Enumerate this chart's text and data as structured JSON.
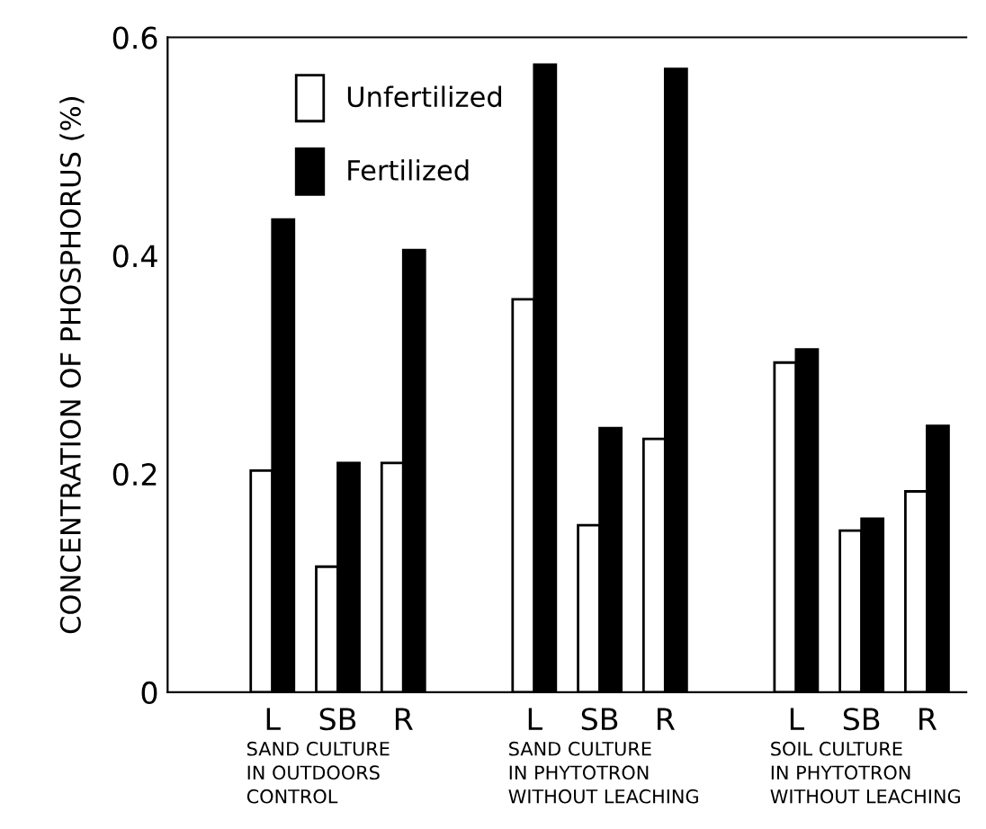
{
  "chart_data": {
    "type": "bar",
    "ylabel": "CONCENTRATION OF PHOSPHORUS (%)",
    "categories": [
      null,
      "L",
      "SB",
      "R",
      null,
      "L",
      "SB",
      "R",
      null,
      "L",
      "SB",
      "R"
    ],
    "series": [
      {
        "name": "Unfertilized",
        "color": "#ffffff",
        "values": [
          null,
          0.203,
          0.115,
          0.21,
          null,
          0.36,
          0.153,
          0.232,
          null,
          0.302,
          0.148,
          0.184
        ]
      },
      {
        "name": "Fertilized",
        "color": "#000000",
        "values": [
          null,
          0.433,
          0.21,
          0.405,
          null,
          0.575,
          0.242,
          0.571,
          null,
          0.314,
          0.159,
          0.244
        ]
      }
    ],
    "ylim": [
      0,
      0.6
    ],
    "yticks": [
      {
        "value": 0,
        "label": "0"
      },
      0.2,
      0.4,
      0.6
    ],
    "legend": "top left",
    "grid": false,
    "annotations": [
      "SAND CULTURE\nIN OUTDOORS\nCONTROL",
      "SAND CULTURE\nIN PHYTOTRON\nWITHOUT LEACHING",
      "SOIL CULTURE\nIN PHYTOTRON\nWITHOUT LEACHING"
    ]
  }
}
